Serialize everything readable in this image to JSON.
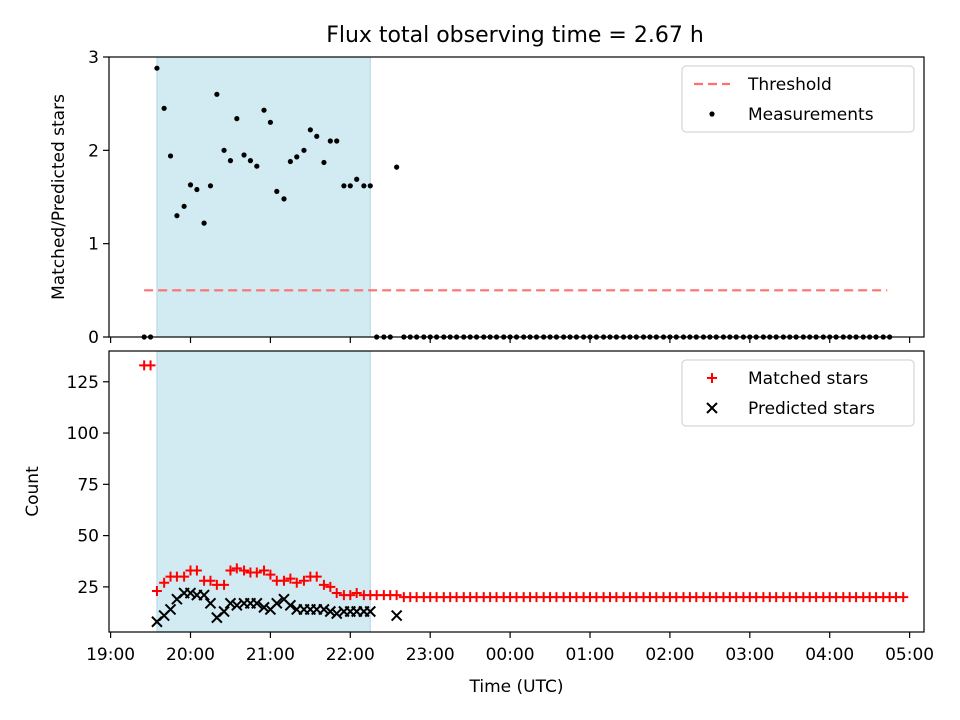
{
  "title": "Flux total observing time = 2.67 h",
  "colors": {
    "shade": "#add8e6",
    "threshold": "#ff7070",
    "measurements": "#000000",
    "matched": "#ff0000",
    "predicted": "#000000"
  },
  "chart_data": [
    {
      "type": "scatter",
      "ylabel": "Matched/Predicted stars",
      "ylim": [
        0,
        3
      ],
      "yticks": [
        0,
        1,
        2,
        3
      ],
      "x_axis": "hours after 19:00 UTC",
      "xlim": [
        -0.02,
        10.18
      ],
      "shaded_interval": [
        0.58,
        3.25
      ],
      "threshold": {
        "name": "Threshold",
        "value": 0.5,
        "x_range": [
          0.42,
          9.72
        ]
      },
      "legend": [
        "Threshold",
        "Measurements"
      ],
      "legend_position": "top-right",
      "series": [
        {
          "name": "Measurements",
          "points": [
            [
              0.42,
              0
            ],
            [
              0.5,
              0
            ],
            [
              0.58,
              2.88
            ],
            [
              0.67,
              2.45
            ],
            [
              0.75,
              1.94
            ],
            [
              0.83,
              1.3
            ],
            [
              0.92,
              1.4
            ],
            [
              1.0,
              1.63
            ],
            [
              1.08,
              1.58
            ],
            [
              1.17,
              1.22
            ],
            [
              1.25,
              1.62
            ],
            [
              1.33,
              2.6
            ],
            [
              1.42,
              2.0
            ],
            [
              1.5,
              1.89
            ],
            [
              1.58,
              2.34
            ],
            [
              1.67,
              1.95
            ],
            [
              1.75,
              1.89
            ],
            [
              1.83,
              1.83
            ],
            [
              1.92,
              2.43
            ],
            [
              2.0,
              2.3
            ],
            [
              2.08,
              1.56
            ],
            [
              2.17,
              1.48
            ],
            [
              2.25,
              1.88
            ],
            [
              2.33,
              1.93
            ],
            [
              2.42,
              2.0
            ],
            [
              2.5,
              2.22
            ],
            [
              2.58,
              2.15
            ],
            [
              2.67,
              1.87
            ],
            [
              2.75,
              2.1
            ],
            [
              2.83,
              2.1
            ],
            [
              2.92,
              1.62
            ],
            [
              3.0,
              1.62
            ],
            [
              3.08,
              1.69
            ],
            [
              3.17,
              1.62
            ],
            [
              3.25,
              1.62
            ],
            [
              3.33,
              0
            ],
            [
              3.42,
              0
            ],
            [
              3.5,
              0
            ],
            [
              3.58,
              1.82
            ],
            [
              3.67,
              0
            ],
            [
              3.75,
              0
            ],
            [
              3.83,
              0
            ],
            [
              3.92,
              0
            ],
            [
              4.0,
              0
            ],
            [
              4.08,
              0
            ],
            [
              4.17,
              0
            ],
            [
              4.25,
              0
            ],
            [
              4.33,
              0
            ],
            [
              4.42,
              0
            ],
            [
              4.5,
              0
            ],
            [
              4.58,
              0
            ],
            [
              4.67,
              0
            ],
            [
              4.75,
              0
            ],
            [
              4.83,
              0
            ],
            [
              4.92,
              0
            ],
            [
              5.0,
              0
            ],
            [
              5.08,
              0
            ],
            [
              5.17,
              0
            ],
            [
              5.25,
              0
            ],
            [
              5.33,
              0
            ],
            [
              5.42,
              0
            ],
            [
              5.5,
              0
            ],
            [
              5.58,
              0
            ],
            [
              5.67,
              0
            ],
            [
              5.75,
              0
            ],
            [
              5.83,
              0
            ],
            [
              5.92,
              0
            ],
            [
              6.0,
              0
            ],
            [
              6.08,
              0
            ],
            [
              6.17,
              0
            ],
            [
              6.25,
              0
            ],
            [
              6.33,
              0
            ],
            [
              6.42,
              0
            ],
            [
              6.5,
              0
            ],
            [
              6.58,
              0
            ],
            [
              6.67,
              0
            ],
            [
              6.75,
              0
            ],
            [
              6.83,
              0
            ],
            [
              6.92,
              0
            ],
            [
              7.0,
              0
            ],
            [
              7.08,
              0
            ],
            [
              7.17,
              0
            ],
            [
              7.25,
              0
            ],
            [
              7.33,
              0
            ],
            [
              7.42,
              0
            ],
            [
              7.5,
              0
            ],
            [
              7.58,
              0
            ],
            [
              7.67,
              0
            ],
            [
              7.75,
              0
            ],
            [
              7.83,
              0
            ],
            [
              7.92,
              0
            ],
            [
              8.0,
              0
            ],
            [
              8.08,
              0
            ],
            [
              8.17,
              0
            ],
            [
              8.25,
              0
            ],
            [
              8.33,
              0
            ],
            [
              8.42,
              0
            ],
            [
              8.5,
              0
            ],
            [
              8.58,
              0
            ],
            [
              8.67,
              0
            ],
            [
              8.75,
              0
            ],
            [
              8.83,
              0
            ],
            [
              8.92,
              0
            ],
            [
              9.0,
              0
            ],
            [
              9.08,
              0
            ],
            [
              9.17,
              0
            ],
            [
              9.25,
              0
            ],
            [
              9.33,
              0
            ],
            [
              9.42,
              0
            ],
            [
              9.5,
              0
            ],
            [
              9.58,
              0
            ],
            [
              9.67,
              0
            ],
            [
              9.75,
              0
            ]
          ]
        }
      ]
    },
    {
      "type": "scatter",
      "ylabel": "Count",
      "xlabel": "Time (UTC)",
      "ylim": [
        3,
        140
      ],
      "yticks": [
        25,
        50,
        75,
        100,
        125
      ],
      "x_axis": "hours after 19:00 UTC",
      "xlim": [
        -0.02,
        10.18
      ],
      "xticks": [
        0,
        1,
        2,
        3,
        4,
        5,
        6,
        7,
        8,
        9,
        10
      ],
      "xtick_labels": [
        "19:00",
        "20:00",
        "21:00",
        "22:00",
        "23:00",
        "00:00",
        "01:00",
        "02:00",
        "03:00",
        "04:00",
        "05:00"
      ],
      "shaded_interval": [
        0.58,
        3.25
      ],
      "legend": [
        "Matched stars",
        "Predicted stars"
      ],
      "legend_position": "top-right",
      "series": [
        {
          "name": "Matched stars",
          "points": [
            [
              0.42,
              133
            ],
            [
              0.5,
              133
            ],
            [
              0.58,
              23
            ],
            [
              0.67,
              27
            ],
            [
              0.75,
              30
            ],
            [
              0.83,
              30
            ],
            [
              0.92,
              30
            ],
            [
              1.0,
              33
            ],
            [
              1.08,
              33
            ],
            [
              1.17,
              28
            ],
            [
              1.25,
              28
            ],
            [
              1.33,
              26
            ],
            [
              1.42,
              26
            ],
            [
              1.5,
              33
            ],
            [
              1.58,
              34
            ],
            [
              1.67,
              33
            ],
            [
              1.75,
              32
            ],
            [
              1.83,
              32
            ],
            [
              1.92,
              33
            ],
            [
              2.0,
              31
            ],
            [
              2.08,
              28
            ],
            [
              2.17,
              28
            ],
            [
              2.25,
              29
            ],
            [
              2.33,
              27
            ],
            [
              2.42,
              28
            ],
            [
              2.5,
              30
            ],
            [
              2.58,
              30
            ],
            [
              2.67,
              26
            ],
            [
              2.75,
              25
            ],
            [
              2.83,
              22
            ],
            [
              2.92,
              21
            ],
            [
              3.0,
              21
            ],
            [
              3.08,
              22
            ],
            [
              3.17,
              21
            ],
            [
              3.25,
              21
            ],
            [
              3.33,
              21
            ],
            [
              3.42,
              21
            ],
            [
              3.5,
              21
            ],
            [
              3.58,
              21
            ],
            [
              3.67,
              20
            ],
            [
              3.75,
              20
            ],
            [
              3.83,
              20
            ],
            [
              3.92,
              20
            ],
            [
              4.0,
              20
            ],
            [
              4.08,
              20
            ],
            [
              4.17,
              20
            ],
            [
              4.25,
              20
            ],
            [
              4.33,
              20
            ],
            [
              4.42,
              20
            ],
            [
              4.5,
              20
            ],
            [
              4.58,
              20
            ],
            [
              4.67,
              20
            ],
            [
              4.75,
              20
            ],
            [
              4.83,
              20
            ],
            [
              4.92,
              20
            ],
            [
              5.0,
              20
            ],
            [
              5.08,
              20
            ],
            [
              5.17,
              20
            ],
            [
              5.25,
              20
            ],
            [
              5.33,
              20
            ],
            [
              5.42,
              20
            ],
            [
              5.5,
              20
            ],
            [
              5.58,
              20
            ],
            [
              5.67,
              20
            ],
            [
              5.75,
              20
            ],
            [
              5.83,
              20
            ],
            [
              5.92,
              20
            ],
            [
              6.0,
              20
            ],
            [
              6.08,
              20
            ],
            [
              6.17,
              20
            ],
            [
              6.25,
              20
            ],
            [
              6.33,
              20
            ],
            [
              6.42,
              20
            ],
            [
              6.5,
              20
            ],
            [
              6.58,
              20
            ],
            [
              6.67,
              20
            ],
            [
              6.75,
              20
            ],
            [
              6.83,
              20
            ],
            [
              6.92,
              20
            ],
            [
              7.0,
              20
            ],
            [
              7.08,
              20
            ],
            [
              7.17,
              20
            ],
            [
              7.25,
              20
            ],
            [
              7.33,
              20
            ],
            [
              7.42,
              20
            ],
            [
              7.5,
              20
            ],
            [
              7.58,
              20
            ],
            [
              7.67,
              20
            ],
            [
              7.75,
              20
            ],
            [
              7.83,
              20
            ],
            [
              7.92,
              20
            ],
            [
              8.0,
              20
            ],
            [
              8.08,
              20
            ],
            [
              8.17,
              20
            ],
            [
              8.25,
              20
            ],
            [
              8.33,
              20
            ],
            [
              8.42,
              20
            ],
            [
              8.5,
              20
            ],
            [
              8.58,
              20
            ],
            [
              8.67,
              20
            ],
            [
              8.75,
              20
            ],
            [
              8.83,
              20
            ],
            [
              8.92,
              20
            ],
            [
              9.0,
              20
            ],
            [
              9.08,
              20
            ],
            [
              9.17,
              20
            ],
            [
              9.25,
              20
            ],
            [
              9.33,
              20
            ],
            [
              9.42,
              20
            ],
            [
              9.5,
              20
            ],
            [
              9.58,
              20
            ],
            [
              9.67,
              20
            ],
            [
              9.75,
              20
            ],
            [
              9.83,
              20
            ],
            [
              9.92,
              20
            ]
          ]
        },
        {
          "name": "Predicted stars",
          "points": [
            [
              0.58,
              8
            ],
            [
              0.67,
              11
            ],
            [
              0.75,
              14
            ],
            [
              0.83,
              19
            ],
            [
              0.92,
              22
            ],
            [
              1.0,
              22
            ],
            [
              1.08,
              21
            ],
            [
              1.17,
              21
            ],
            [
              1.25,
              17
            ],
            [
              1.33,
              10
            ],
            [
              1.42,
              13
            ],
            [
              1.5,
              17
            ],
            [
              1.58,
              16
            ],
            [
              1.67,
              17
            ],
            [
              1.75,
              17
            ],
            [
              1.83,
              17
            ],
            [
              1.92,
              15
            ],
            [
              2.0,
              14
            ],
            [
              2.08,
              17
            ],
            [
              2.17,
              19
            ],
            [
              2.25,
              16
            ],
            [
              2.33,
              14
            ],
            [
              2.42,
              14
            ],
            [
              2.5,
              14
            ],
            [
              2.58,
              14
            ],
            [
              2.67,
              14
            ],
            [
              2.75,
              13
            ],
            [
              2.83,
              12
            ],
            [
              2.92,
              13
            ],
            [
              3.0,
              13
            ],
            [
              3.08,
              13
            ],
            [
              3.17,
              13
            ],
            [
              3.25,
              13
            ],
            [
              3.58,
              11
            ]
          ]
        }
      ]
    }
  ]
}
